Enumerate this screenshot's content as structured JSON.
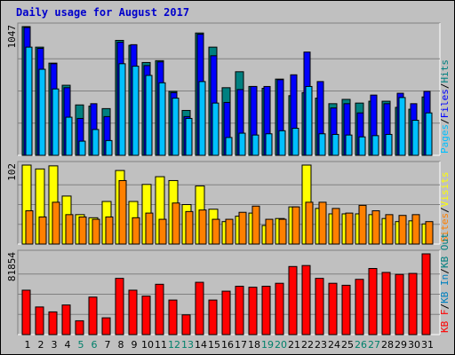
{
  "title": "Daily usage for August 2017",
  "colors": {
    "title": "#0000cc",
    "hits": "#008080",
    "files": "#0000ff",
    "pages": "#00c0ff",
    "visits": "#ffff00",
    "sites": "#ff8000",
    "kbin": "#0080c0",
    "kbout": "#008080",
    "kbf": "#ff0000",
    "weekday_label": "#000000",
    "weekend_label": "#00806a"
  },
  "chart_data": {
    "type": "bar",
    "categories": [
      "1",
      "2",
      "3",
      "4",
      "5",
      "6",
      "7",
      "8",
      "9",
      "10",
      "11",
      "12",
      "13",
      "14",
      "15",
      "16",
      "17",
      "18",
      "19",
      "20",
      "21",
      "22",
      "23",
      "24",
      "25",
      "26",
      "27",
      "28",
      "29",
      "30",
      "31"
    ],
    "weekend_days": [
      "5",
      "6",
      "12",
      "13",
      "19",
      "20",
      "26",
      "27"
    ],
    "panels": [
      {
        "max_label": "1047",
        "ymax": 1047,
        "legend": [
          {
            "text": "Pages",
            "color": "#00c0ff"
          },
          {
            "text": "/",
            "color": "#000000"
          },
          {
            "text": "Files",
            "color": "#0000ff"
          },
          {
            "text": "/",
            "color": "#000000"
          },
          {
            "text": "Hits",
            "color": "#008080"
          }
        ],
        "series": [
          {
            "name": "Hits",
            "values": [
              1047,
              880,
              750,
              570,
              410,
              400,
              380,
              935,
              895,
              755,
              770,
              520,
              365,
              995,
              880,
              550,
              680,
              560,
              545,
              620,
              485,
              510,
              465,
              420,
              455,
              425,
              440,
              440,
              390,
              375,
              475
            ]
          },
          {
            "name": "Files",
            "values": [
              1040,
              870,
              745,
              550,
              300,
              420,
              315,
              920,
              900,
              730,
              760,
              510,
              315,
              985,
              810,
              430,
              535,
              560,
              560,
              615,
              655,
              840,
              600,
              385,
              420,
              345,
              490,
              420,
              505,
              420,
              520
            ]
          },
          {
            "name": "Pages",
            "values": [
              880,
              700,
              540,
              310,
              115,
              210,
              120,
              745,
              725,
              650,
              590,
              465,
              300,
              600,
              425,
              145,
              180,
              165,
              175,
              200,
              220,
              560,
              175,
              170,
              165,
              150,
              160,
              170,
              470,
              285,
              345
            ]
          }
        ]
      },
      {
        "max_label": "102",
        "ymax": 102,
        "legend": [
          {
            "text": "Sites",
            "color": "#ff8000"
          },
          {
            "text": "/",
            "color": "#000000"
          },
          {
            "text": "Visits",
            "color": "#ffff00"
          }
        ],
        "series": [
          {
            "name": "Visits",
            "values": [
              102,
              97,
              101,
              62,
              38,
              34,
              55,
              95,
              55,
              77,
              87,
              82,
              51,
              75,
              45,
              29,
              36,
              40,
              24,
              33,
              48,
              102,
              46,
              39,
              39,
              39,
              38,
              33,
              29,
              30,
              26
            ]
          },
          {
            "name": "Sites",
            "values": [
              43,
              35,
              54,
              38,
              35,
              32,
              35,
              82,
              34,
              40,
              32,
              53,
              42,
              44,
              32,
              32,
              41,
              49,
              32,
              32,
              48,
              54,
              54,
              46,
              40,
              50,
              43,
              38,
              37,
              38,
              29
            ]
          }
        ]
      },
      {
        "max_label": "81854",
        "ymax": 81854,
        "legend": [
          {
            "text": "KB F",
            "color": "#ff0000"
          },
          {
            "text": "/",
            "color": "#000000"
          },
          {
            "text": "KB In",
            "color": "#0080c0"
          },
          {
            "text": "/",
            "color": "#000000"
          },
          {
            "text": "KB Out",
            "color": "#008080"
          }
        ],
        "series": [
          {
            "name": "KB F",
            "values": [
              45000,
              28000,
              23000,
              30000,
              14000,
              38000,
              17000,
              57000,
              45000,
              39000,
              51000,
              35000,
              20000,
              53000,
              35000,
              44000,
              49000,
              48000,
              49000,
              52000,
              69000,
              70000,
              57000,
              52000,
              50000,
              56000,
              67000,
              63000,
              61000,
              62000,
              81854
            ]
          }
        ]
      }
    ]
  }
}
